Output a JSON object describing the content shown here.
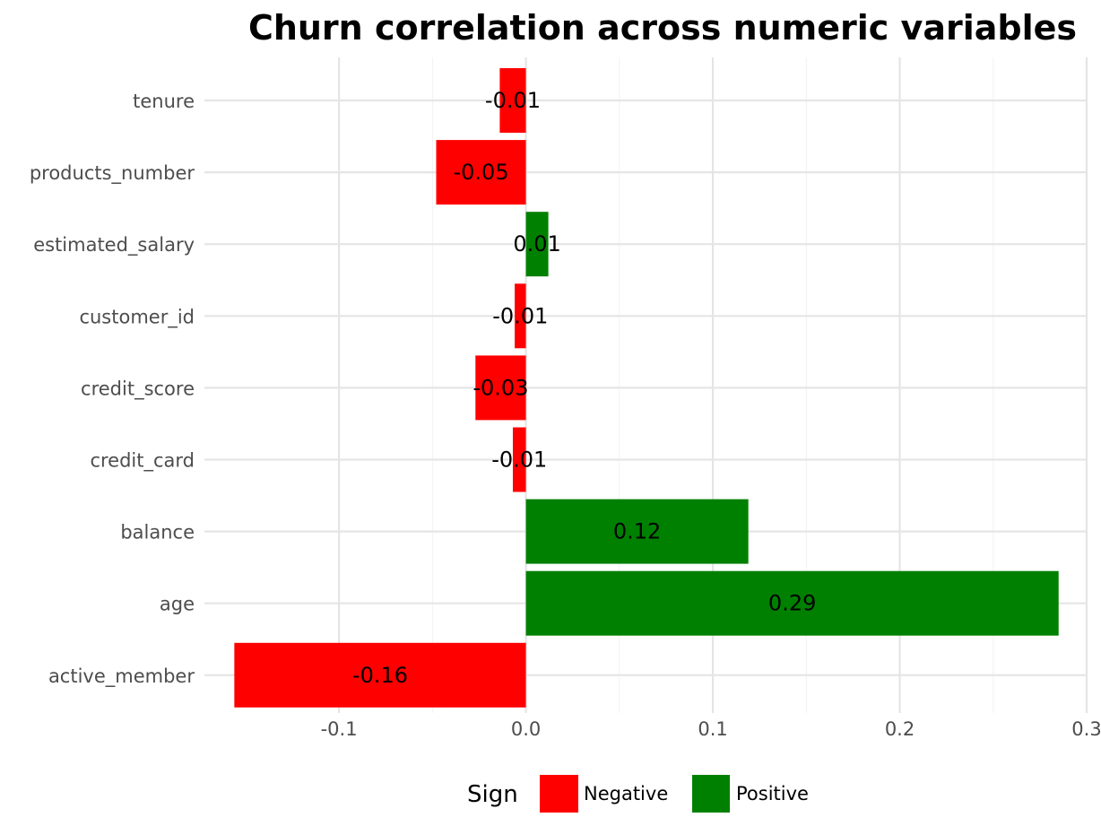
{
  "chart_data": {
    "type": "bar",
    "orientation": "horizontal",
    "title": "Churn correlation across numeric variables",
    "xlabel": "",
    "ylabel": "",
    "categories": [
      "tenure",
      "products_number",
      "estimated_salary",
      "customer_id",
      "credit_score",
      "credit_card",
      "balance",
      "age",
      "active_member"
    ],
    "values": [
      -0.014,
      -0.048,
      0.012,
      -0.006,
      -0.027,
      -0.007,
      0.119,
      0.285,
      -0.156
    ],
    "labels": [
      "-0.01",
      "-0.05",
      "0.01",
      "-0.01",
      "-0.03",
      "-0.01",
      "0.12",
      "0.29",
      "-0.16"
    ],
    "sign": [
      "Negative",
      "Negative",
      "Positive",
      "Negative",
      "Negative",
      "Negative",
      "Positive",
      "Positive",
      "Negative"
    ],
    "xlim": [
      -0.172,
      0.3
    ],
    "xticks": [
      -0.1,
      0.0,
      0.1,
      0.2,
      0.3
    ],
    "xtick_labels": [
      "-0.1",
      "0.0",
      "0.1",
      "0.2",
      "0.3"
    ],
    "grid": true,
    "legend": {
      "title": "Sign",
      "placement": "bottom",
      "entries": [
        {
          "label": "Negative",
          "color": "#ff0000"
        },
        {
          "label": "Positive",
          "color": "#008000"
        }
      ]
    },
    "colors": {
      "Negative": "#ff0000",
      "Positive": "#008000"
    }
  }
}
